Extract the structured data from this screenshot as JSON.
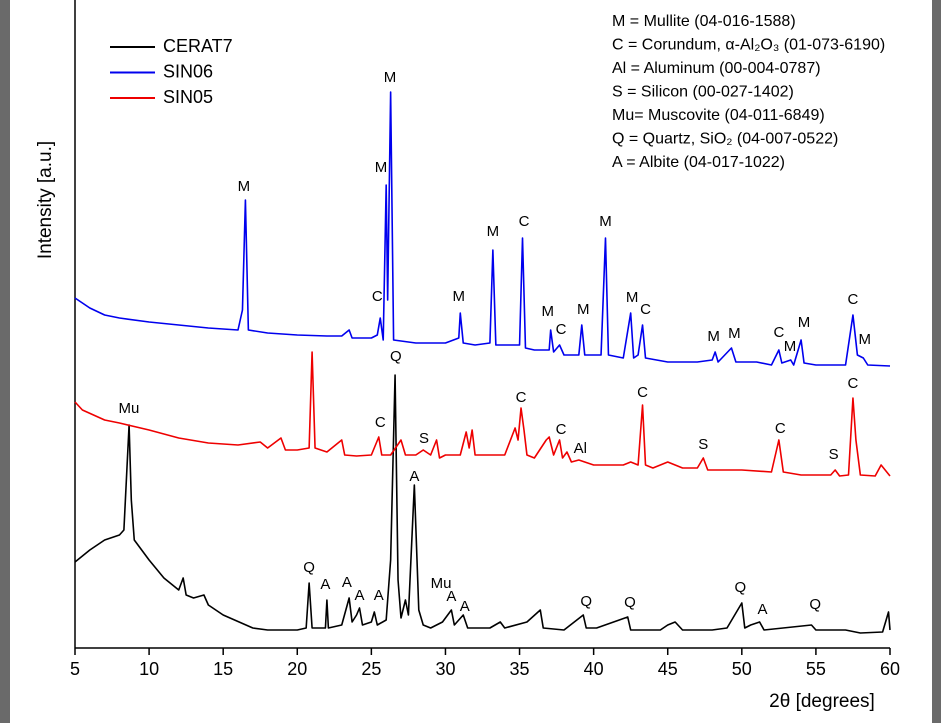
{
  "chart_data": {
    "type": "line",
    "xlabel": "2θ [degrees]",
    "ylabel": "Intensity [a.u.]",
    "xlim": [
      5,
      60
    ],
    "xticks": [
      5,
      10,
      15,
      20,
      25,
      30,
      35,
      40,
      45,
      50,
      55,
      60
    ],
    "ylim": [
      0,
      640
    ],
    "legend": "upper left",
    "series": [
      {
        "name": "CERAT7",
        "color": "#000000",
        "x": [
          5,
          6,
          7,
          8,
          8.3,
          8.5,
          8.65,
          8.8,
          9,
          10,
          11,
          12,
          12.3,
          12.5,
          13,
          13.7,
          14,
          15,
          17,
          18,
          20,
          20.6,
          20.8,
          21,
          21.9,
          22,
          22.1,
          23,
          23.5,
          23.7,
          24,
          24.2,
          24.4,
          25,
          25.2,
          25.4,
          26,
          26.3,
          26.6,
          26.8,
          27,
          27.3,
          27.5,
          27.9,
          28.2,
          28.5,
          29,
          29.8,
          30.4,
          30.6,
          31.2,
          31.5,
          33,
          33.7,
          34,
          35.5,
          36.4,
          36.6,
          38,
          39.3,
          39.5,
          40.2,
          42.3,
          42.5,
          44.5,
          45,
          45.5,
          46,
          48,
          49,
          50,
          50.2,
          50.6,
          51.2,
          51.5,
          54.7,
          55,
          57,
          58,
          59.5,
          59.9,
          60
        ],
        "values": [
          86,
          98,
          108,
          113,
          118,
          178,
          223,
          148,
          108,
          88,
          70,
          58,
          70,
          53,
          50,
          53,
          43,
          33,
          20,
          18,
          18,
          20,
          65,
          20,
          20,
          48,
          20,
          23,
          50,
          26,
          33,
          40,
          23,
          26,
          36,
          23,
          28,
          88,
          273,
          68,
          30,
          48,
          33,
          163,
          38,
          23,
          20,
          26,
          38,
          23,
          33,
          20,
          20,
          26,
          20,
          26,
          38,
          20,
          18,
          33,
          20,
          20,
          31,
          18,
          18,
          23,
          26,
          18,
          18,
          20,
          45,
          20,
          23,
          26,
          18,
          23,
          18,
          18,
          15,
          16,
          36,
          18
        ]
      },
      {
        "name": "SIN06",
        "color": "#0000ee",
        "x": [
          5,
          6,
          7,
          8,
          10,
          12,
          14,
          16,
          16.3,
          16.5,
          16.7,
          18,
          20,
          22,
          23,
          23.5,
          23.7,
          25,
          25.4,
          25.6,
          25.8,
          26,
          26.1,
          26.3,
          26.5,
          28,
          30,
          30.9,
          31,
          31.2,
          32,
          33,
          33.2,
          33.4,
          35,
          35.2,
          35.4,
          36,
          37,
          37.1,
          37.3,
          37.7,
          38,
          39,
          39.2,
          39.4,
          40.5,
          40.8,
          41,
          42,
          42.5,
          42.7,
          43,
          43.3,
          43.5,
          45,
          47,
          48,
          48.2,
          48.4,
          49.3,
          49.6,
          50,
          51,
          52,
          52.5,
          52.7,
          53.3,
          53.5,
          54,
          54.2,
          55,
          57,
          57.5,
          57.8,
          58.2,
          58.5,
          60
        ],
        "values": [
          350,
          340,
          333,
          330,
          326,
          323,
          320,
          318,
          338,
          448,
          318,
          315,
          313,
          312,
          312,
          318,
          310,
          310,
          313,
          330,
          308,
          463,
          348,
          556,
          308,
          305,
          305,
          310,
          335,
          305,
          303,
          305,
          398,
          303,
          303,
          410,
          300,
          298,
          298,
          318,
          296,
          303,
          293,
          293,
          323,
          293,
          293,
          410,
          293,
          290,
          335,
          290,
          293,
          323,
          290,
          286,
          286,
          288,
          296,
          286,
          300,
          286,
          286,
          286,
          283,
          298,
          285,
          288,
          283,
          308,
          285,
          283,
          283,
          333,
          293,
          290,
          283,
          282
        ]
      },
      {
        "name": "SIN05",
        "color": "#ee0000",
        "x": [
          5,
          5.5,
          7,
          8,
          10,
          12,
          14,
          16,
          17.5,
          18,
          18.9,
          19.2,
          20,
          20.8,
          21,
          21.2,
          22,
          23,
          23.2,
          24,
          25,
          25.5,
          25.7,
          26.3,
          27,
          27.3,
          28,
          28.5,
          29,
          29.4,
          29.6,
          30,
          31,
          31.4,
          31.6,
          31.8,
          32,
          33,
          34,
          34.7,
          34.9,
          35.1,
          35.3,
          35.5,
          36,
          36.8,
          37,
          37.3,
          37.7,
          37.9,
          38.2,
          38.5,
          39,
          40,
          42,
          42.5,
          43,
          43.3,
          43.5,
          44,
          45,
          46,
          47,
          47.4,
          47.7,
          50,
          52,
          52.5,
          52.8,
          54,
          56,
          56.3,
          56.6,
          57.2,
          57.5,
          57.7,
          58,
          59,
          59.4,
          60
        ],
        "values": [
          246,
          238,
          228,
          225,
          218,
          210,
          205,
          203,
          206,
          200,
          210,
          198,
          198,
          200,
          296,
          200,
          196,
          208,
          193,
          192,
          193,
          211,
          193,
          193,
          208,
          193,
          193,
          198,
          193,
          208,
          190,
          193,
          193,
          216,
          200,
          218,
          193,
          193,
          193,
          220,
          208,
          240,
          218,
          193,
          190,
          208,
          211,
          193,
          208,
          190,
          196,
          186,
          188,
          183,
          183,
          186,
          183,
          243,
          183,
          180,
          186,
          180,
          180,
          190,
          178,
          178,
          176,
          208,
          176,
          173,
          173,
          178,
          172,
          173,
          250,
          208,
          173,
          172,
          183,
          172
        ]
      }
    ],
    "phase_legend": [
      "M = Mullite (04-016-1588)",
      "C = Corundum, α-Al₂O₃ (01-073-6190)",
      "Al = Aluminum (00-004-0787)",
      "S = Silicon (00-027-1402)",
      "Mu= Muscovite (04-011-6849)",
      "Q = Quartz, SiO₂ (04-007-0522)",
      "A = Albite (04-017-1022)"
    ],
    "annotations": [
      {
        "text": "M",
        "x": 16.4,
        "y": 461
      },
      {
        "text": "M",
        "x": 26.26,
        "y": 570
      },
      {
        "text": "M",
        "x": 25.65,
        "y": 480
      },
      {
        "text": "C",
        "x": 25.4,
        "y": 351
      },
      {
        "text": "M",
        "x": 30.9,
        "y": 351
      },
      {
        "text": "M",
        "x": 33.2,
        "y": 416
      },
      {
        "text": "C",
        "x": 35.3,
        "y": 426
      },
      {
        "text": "M",
        "x": 36.9,
        "y": 336
      },
      {
        "text": "C",
        "x": 37.8,
        "y": 318
      },
      {
        "text": "M",
        "x": 39.3,
        "y": 338
      },
      {
        "text": "M",
        "x": 40.8,
        "y": 426
      },
      {
        "text": "M",
        "x": 42.6,
        "y": 350
      },
      {
        "text": "C",
        "x": 43.5,
        "y": 338
      },
      {
        "text": "M",
        "x": 48.1,
        "y": 311
      },
      {
        "text": "M",
        "x": 49.5,
        "y": 314
      },
      {
        "text": "C",
        "x": 52.5,
        "y": 315
      },
      {
        "text": "M",
        "x": 53.25,
        "y": 301
      },
      {
        "text": "M",
        "x": 54.2,
        "y": 325
      },
      {
        "text": "C",
        "x": 57.5,
        "y": 348
      },
      {
        "text": "M",
        "x": 58.3,
        "y": 308
      },
      {
        "text": "Mu",
        "x": 8.64,
        "y": 239
      },
      {
        "text": "C",
        "x": 25.6,
        "y": 225
      },
      {
        "text": "S",
        "x": 28.55,
        "y": 209
      },
      {
        "text": "Q",
        "x": 26.65,
        "y": 291
      },
      {
        "text": "C",
        "x": 35.1,
        "y": 250
      },
      {
        "text": "C",
        "x": 37.8,
        "y": 218
      },
      {
        "text": "Al",
        "x": 39.1,
        "y": 199
      },
      {
        "text": "C",
        "x": 43.3,
        "y": 255
      },
      {
        "text": "S",
        "x": 47.4,
        "y": 203
      },
      {
        "text": "C",
        "x": 52.6,
        "y": 219
      },
      {
        "text": "S",
        "x": 56.2,
        "y": 193
      },
      {
        "text": "C",
        "x": 57.5,
        "y": 264
      },
      {
        "text": "A",
        "x": 27.9,
        "y": 171
      },
      {
        "text": "Q",
        "x": 20.8,
        "y": 80
      },
      {
        "text": "A",
        "x": 21.9,
        "y": 63
      },
      {
        "text": "A",
        "x": 23.35,
        "y": 65
      },
      {
        "text": "A",
        "x": 24.2,
        "y": 52
      },
      {
        "text": "A",
        "x": 25.5,
        "y": 52
      },
      {
        "text": "Mu",
        "x": 29.7,
        "y": 64
      },
      {
        "text": "A",
        "x": 30.4,
        "y": 51
      },
      {
        "text": "A",
        "x": 31.3,
        "y": 41
      },
      {
        "text": "Q",
        "x": 39.5,
        "y": 46
      },
      {
        "text": "Q",
        "x": 42.45,
        "y": 45
      },
      {
        "text": "Q",
        "x": 49.9,
        "y": 60
      },
      {
        "text": "A",
        "x": 51.4,
        "y": 38
      },
      {
        "text": "Q",
        "x": 54.95,
        "y": 43
      }
    ]
  }
}
